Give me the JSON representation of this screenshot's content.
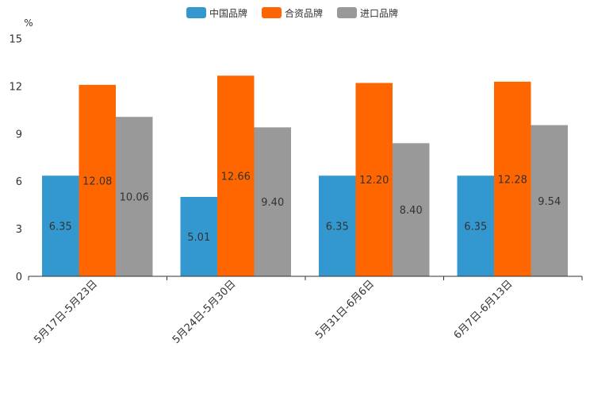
{
  "chart_data": {
    "type": "bar",
    "title": "",
    "xlabel": "",
    "ylabel": "%",
    "ylim": [
      0,
      15
    ],
    "yticks": [
      "0",
      "3",
      "6",
      "9",
      "12",
      "15"
    ],
    "ytick_values": [
      0,
      3,
      6,
      9,
      12,
      15
    ],
    "categories": [
      "5月17日-5月23日",
      "5月24日-5月30日",
      "5月31日-6月6日",
      "6月7日-6月13日"
    ],
    "legend_position": "top-center",
    "series": [
      {
        "name": "中国品牌",
        "color": "#3498d0",
        "values": [
          6.35,
          5.01,
          6.35,
          6.35
        ],
        "labels": [
          "6.35",
          "5.01",
          "6.35",
          "6.35"
        ]
      },
      {
        "name": "合资品牌",
        "color": "#ff6600",
        "values": [
          12.08,
          12.66,
          12.2,
          12.28
        ],
        "labels": [
          "12.08",
          "12.66",
          "12.20",
          "12.28"
        ]
      },
      {
        "name": "进口品牌",
        "color": "#999999",
        "values": [
          10.06,
          9.4,
          8.4,
          9.54
        ],
        "labels": [
          "10.06",
          "9.40",
          "8.40",
          "9.54"
        ]
      }
    ]
  }
}
